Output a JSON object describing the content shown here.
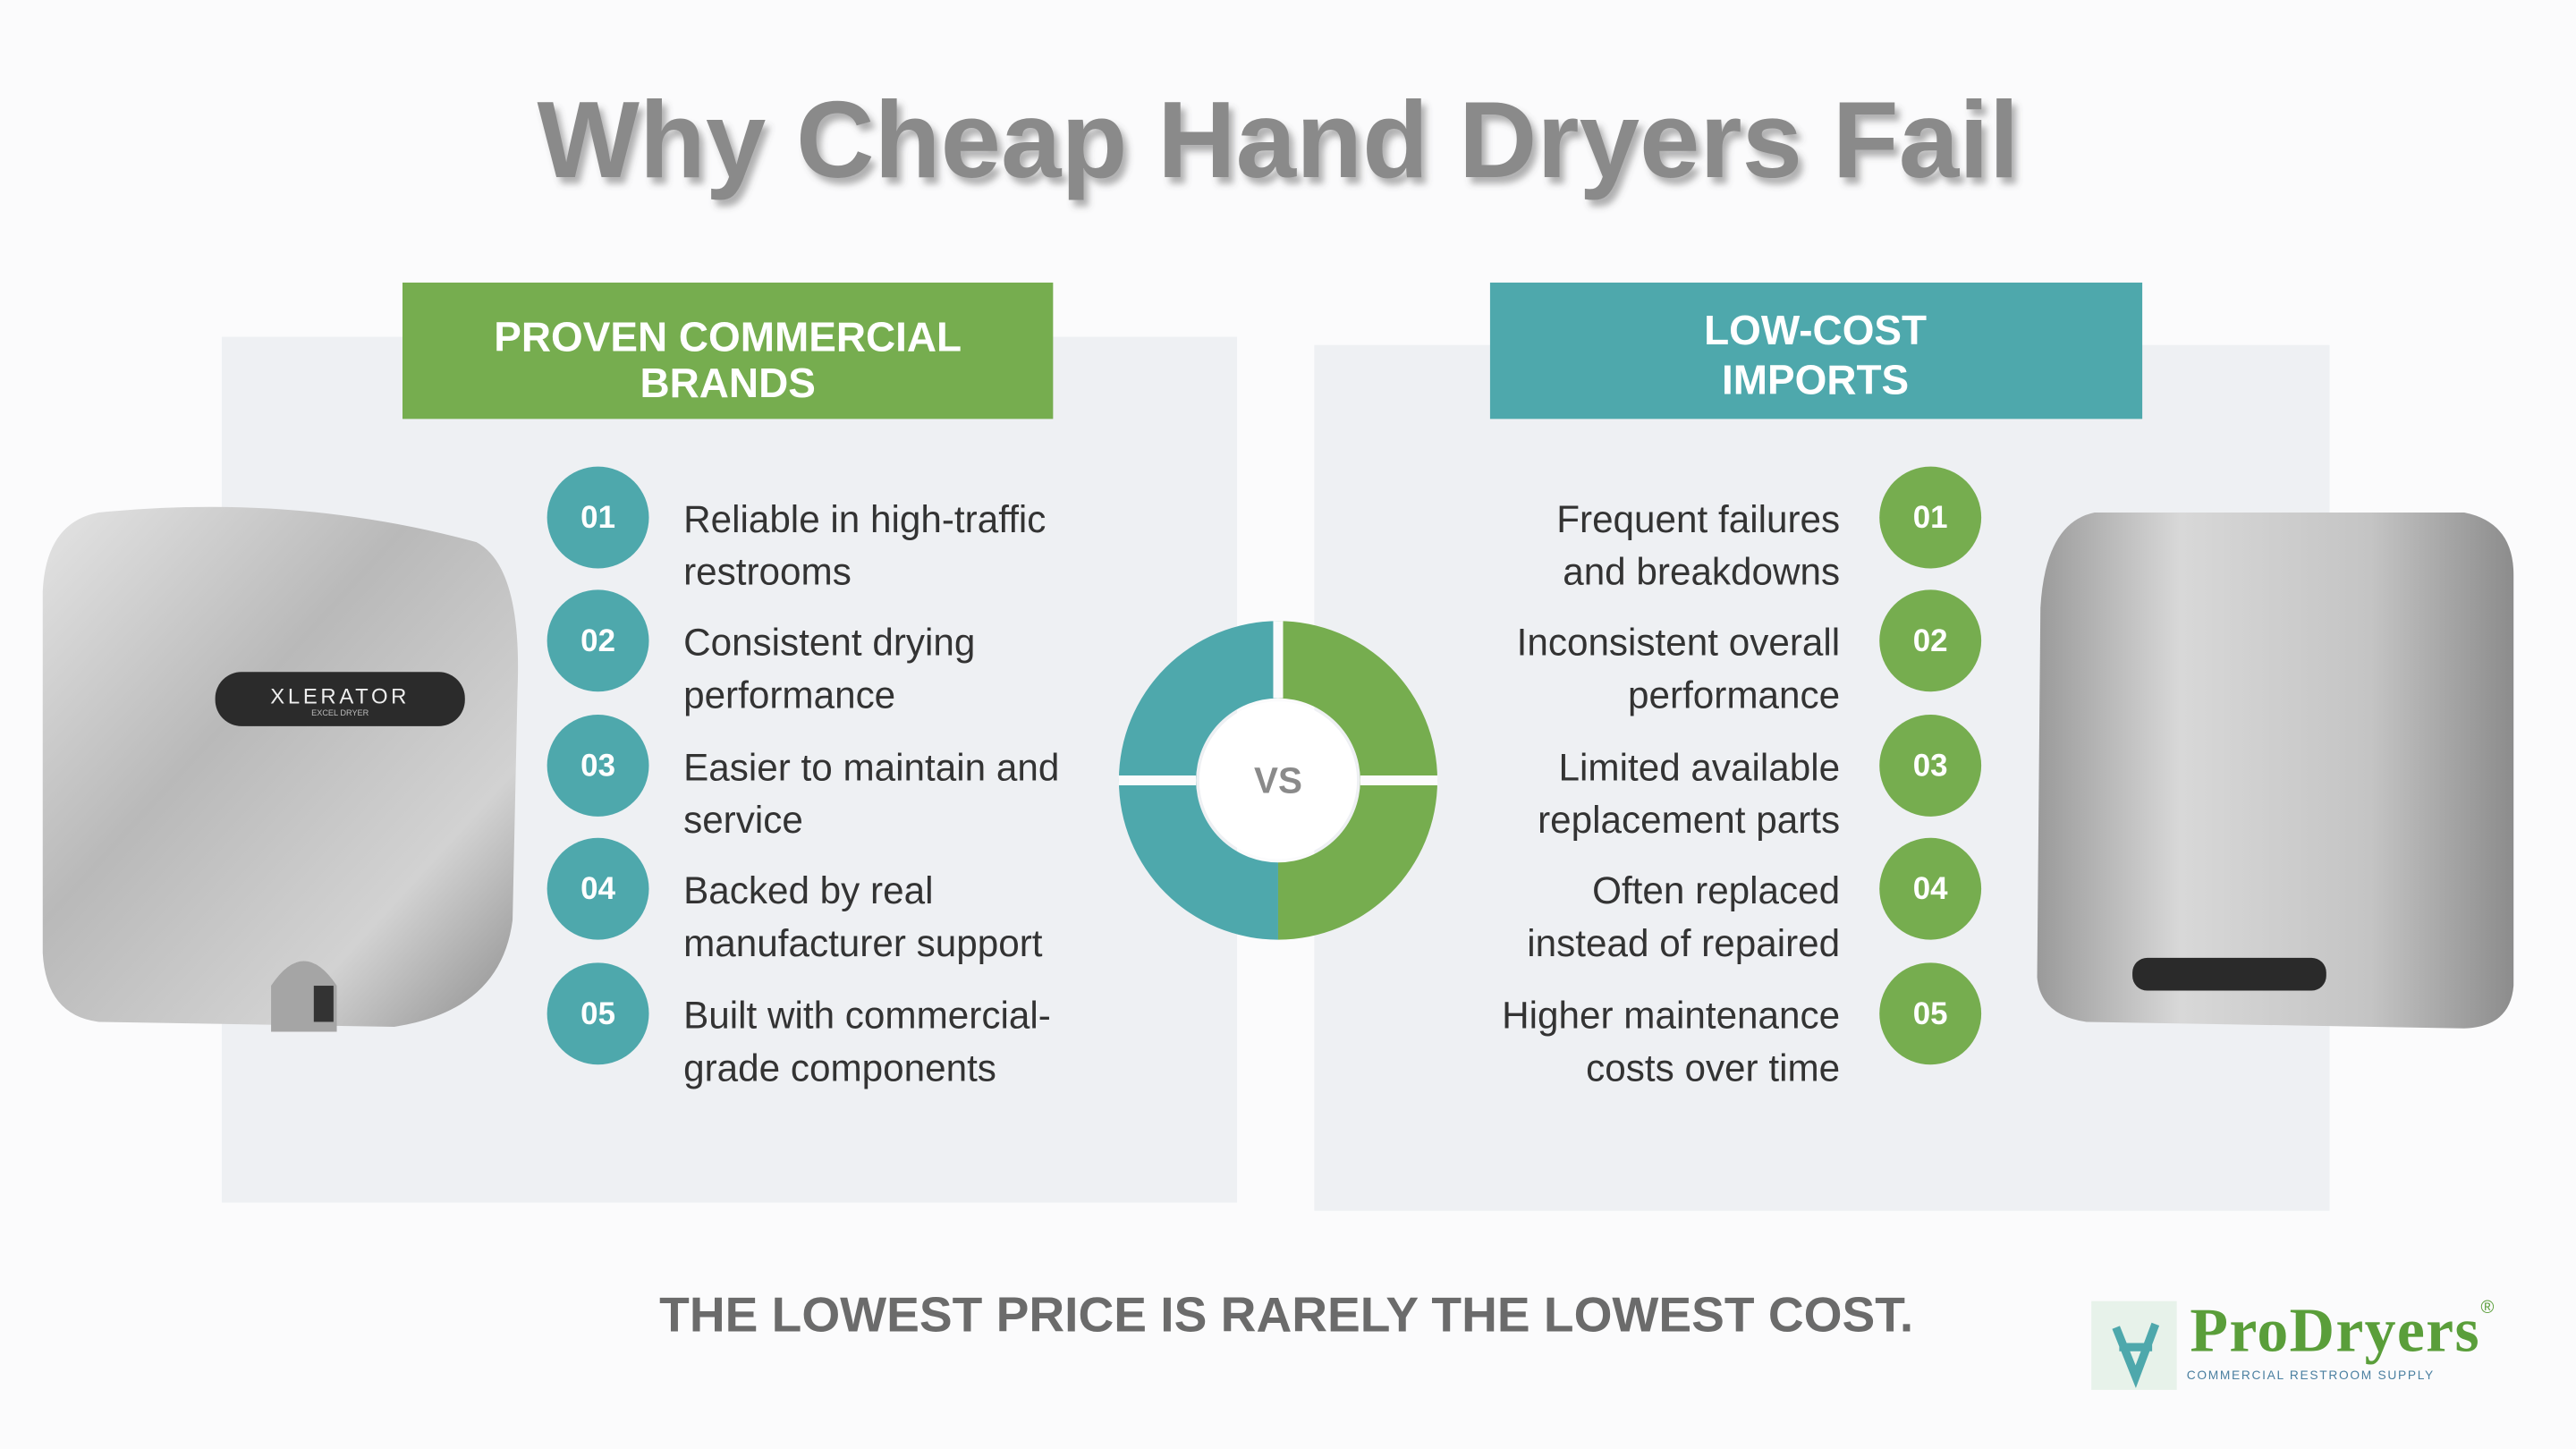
{
  "title": "Why Cheap Hand Dryers Fail",
  "left": {
    "heading": [
      "PROVEN COMMERCIAL",
      "BRANDS"
    ],
    "items": [
      {
        "number": "01",
        "lines": [
          "Reliable in high-traffic",
          "restrooms"
        ]
      },
      {
        "number": "02",
        "lines": [
          "Consistent drying",
          "performance"
        ]
      },
      {
        "number": "03",
        "lines": [
          "Easier to maintain and",
          "service"
        ]
      },
      {
        "number": "04",
        "lines": [
          "Backed by real",
          "manufacturer support"
        ]
      },
      {
        "number": "05",
        "lines": [
          "Built with commercial-",
          "grade components"
        ]
      }
    ],
    "product_label": "XLERATOR",
    "product_sublabel": "EXCEL DRYER"
  },
  "right": {
    "heading": [
      "LOW-COST",
      "IMPORTS"
    ],
    "items": [
      {
        "number": "01",
        "lines": [
          "Frequent failures",
          "and  breakdowns"
        ]
      },
      {
        "number": "02",
        "lines": [
          "Inconsistent overall",
          "performance"
        ]
      },
      {
        "number": "03",
        "lines": [
          "Limited available",
          "replacement parts"
        ]
      },
      {
        "number": "04",
        "lines": [
          "Often replaced",
          "instead of repaired"
        ]
      },
      {
        "number": "05",
        "lines": [
          "Higher maintenance",
          "costs over time"
        ]
      }
    ]
  },
  "versus": "VS",
  "tagline": "THE LOWEST PRICE IS RARELY THE LOWEST COST.",
  "logo": {
    "name": "ProDryers",
    "mark": "®",
    "subtitle": "COMMERCIAL RESTROOM SUPPLY"
  }
}
